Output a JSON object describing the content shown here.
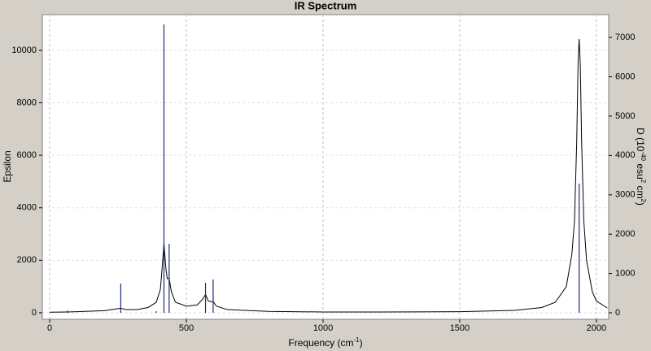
{
  "chart_data": {
    "type": "line",
    "title": "IR Spectrum",
    "x_label": [
      "Frequency (cm",
      "-1",
      ")"
    ],
    "y_label": "Epsilon",
    "y2_label": [
      "D (10",
      "-40",
      " esu",
      "2",
      " cm",
      "2",
      ")"
    ],
    "xlim": [
      -27,
      2045
    ],
    "ylim": [
      -250,
      11360
    ],
    "y2lim": [
      -165,
      7580
    ],
    "xticks": [
      0,
      500,
      1000,
      1500,
      2000
    ],
    "yticks": [
      0,
      2000,
      4000,
      6000,
      8000,
      10000
    ],
    "y2ticks": [
      0,
      1000,
      2000,
      3000,
      4000,
      5000,
      6000,
      7000
    ],
    "grid": true,
    "series": [
      {
        "style": "line",
        "color": "#000000",
        "x": [
          0,
          60,
          100,
          200,
          240,
          260,
          280,
          320,
          360,
          390,
          405,
          412,
          418,
          425,
          430,
          437,
          445,
          460,
          500,
          540,
          560,
          570,
          580,
          590,
          598,
          610,
          650,
          800,
          1000,
          1200,
          1500,
          1700,
          1800,
          1850,
          1890,
          1910,
          1920,
          1928,
          1933,
          1937,
          1941,
          1946,
          1954,
          1964,
          1985,
          2000,
          2040
        ],
        "values": [
          20,
          30,
          40,
          80,
          140,
          170,
          120,
          120,
          200,
          400,
          900,
          1800,
          2650,
          1700,
          1300,
          1320,
          800,
          400,
          250,
          300,
          520,
          700,
          450,
          420,
          430,
          250,
          120,
          50,
          30,
          30,
          40,
          90,
          200,
          400,
          1000,
          2200,
          3500,
          6500,
          9500,
          10430,
          9500,
          6500,
          3500,
          2000,
          800,
          450,
          180
        ]
      },
      {
        "style": "stick",
        "axis": "y2",
        "color": "#1f2a7a",
        "x": [
          65,
          260,
          390,
          418,
          437,
          570,
          598,
          1937
        ],
        "values": [
          60,
          744,
          40,
          7330,
          1756,
          764,
          847,
          3285
        ]
      }
    ]
  }
}
